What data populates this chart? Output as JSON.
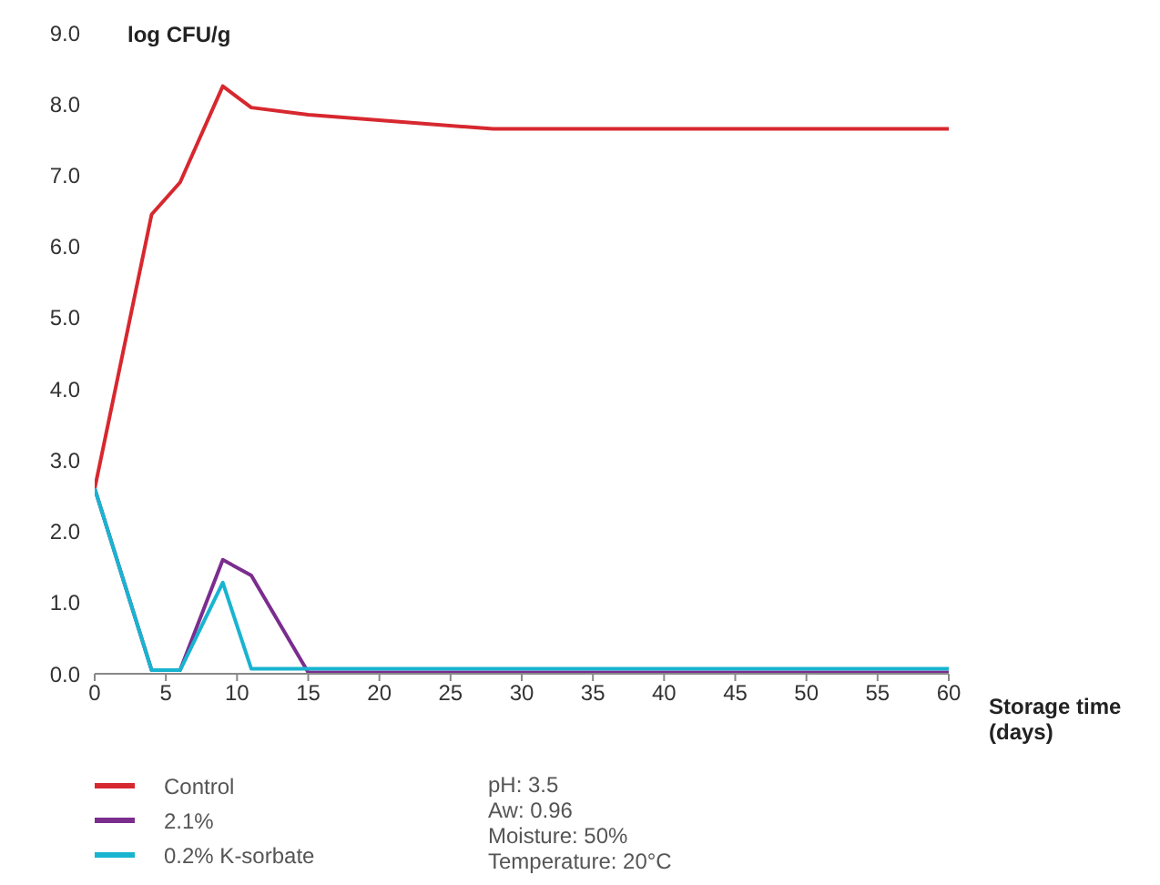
{
  "chart_data": {
    "type": "line",
    "xlabel": "Storage time (days)",
    "ylabel": "log CFU/g",
    "xlim": [
      0,
      60
    ],
    "xticks": [
      0,
      5,
      10,
      15,
      20,
      25,
      30,
      35,
      40,
      45,
      50,
      55,
      60
    ],
    "ylim": [
      0,
      9
    ],
    "yticks": [
      {
        "value": 0,
        "label": "0.0"
      },
      {
        "value": 1,
        "label": "1.0"
      },
      {
        "value": 2,
        "label": "2.0"
      },
      {
        "value": 3,
        "label": "3.0"
      },
      {
        "value": 4,
        "label": "4.0"
      },
      {
        "value": 5,
        "label": "5.0"
      },
      {
        "value": 6,
        "label": "6.0"
      },
      {
        "value": 7,
        "label": "7.0"
      },
      {
        "value": 8,
        "label": "8.0"
      },
      {
        "value": 9,
        "label": "9.0"
      }
    ],
    "grid": false,
    "legend": "bottom left",
    "marker": "none",
    "line_style": "solid",
    "series": [
      {
        "name": "Control",
        "color": "#d7282f",
        "x": [
          0,
          4,
          6,
          9,
          11,
          15,
          28,
          60
        ],
        "values": [
          2.6,
          6.45,
          6.9,
          8.25,
          7.95,
          7.85,
          7.65,
          7.65
        ]
      },
      {
        "name": "2.1%",
        "color": "#7b2d8e",
        "x": [
          0,
          4,
          6,
          9,
          11,
          15,
          60
        ],
        "values": [
          2.6,
          0.05,
          0.05,
          1.6,
          1.38,
          0.02,
          0.02
        ]
      },
      {
        "name": "0.2% K-sorbate",
        "color": "#18b4d0",
        "x": [
          0,
          4,
          6,
          9,
          11,
          15,
          60
        ],
        "values": [
          2.6,
          0.05,
          0.05,
          1.28,
          0.07,
          0.07,
          0.07
        ]
      }
    ],
    "annotations": [
      "pH: 3.5",
      "Aw: 0.96",
      "Moisture: 50%",
      "Temperature: 20°C"
    ]
  }
}
